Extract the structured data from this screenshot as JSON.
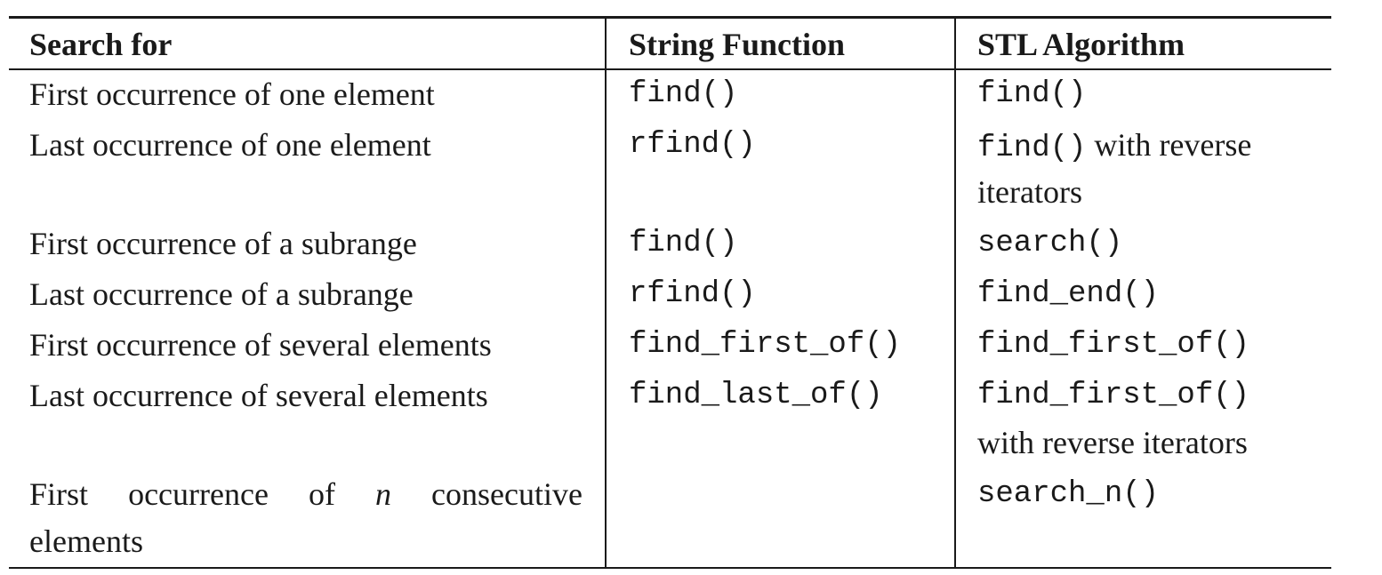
{
  "table": {
    "headers": [
      "Search for",
      "String Function",
      "STL Algorithm"
    ],
    "rows": [
      {
        "search_for": "First occurrence of one element",
        "string_function": "find()",
        "stl_algorithm": "find()"
      },
      {
        "search_for": "Last occurrence of one element",
        "string_function": "rfind()",
        "stl_algorithm_code": "find()",
        "stl_algorithm_text": " with reverse",
        "stl_algorithm_line2": "iterators"
      },
      {
        "search_for": "First occurrence of a subrange",
        "string_function": "find()",
        "stl_algorithm": "search()"
      },
      {
        "search_for": "Last occurrence of a subrange",
        "string_function": "rfind()",
        "stl_algorithm": "find_end()"
      },
      {
        "search_for": "First occurrence of several elements",
        "string_function": "find_first_of()",
        "stl_algorithm": "find_first_of()"
      },
      {
        "search_for": "Last occurrence of several elements",
        "string_function": "find_last_of()",
        "stl_algorithm": "find_first_of()",
        "stl_algorithm_line2": "with reverse iterators"
      },
      {
        "search_for_words": [
          "First",
          "occurrence",
          "of",
          "n",
          "consecutive"
        ],
        "search_for_line2": "elements",
        "string_function": "",
        "stl_algorithm": "search_n()"
      }
    ]
  }
}
